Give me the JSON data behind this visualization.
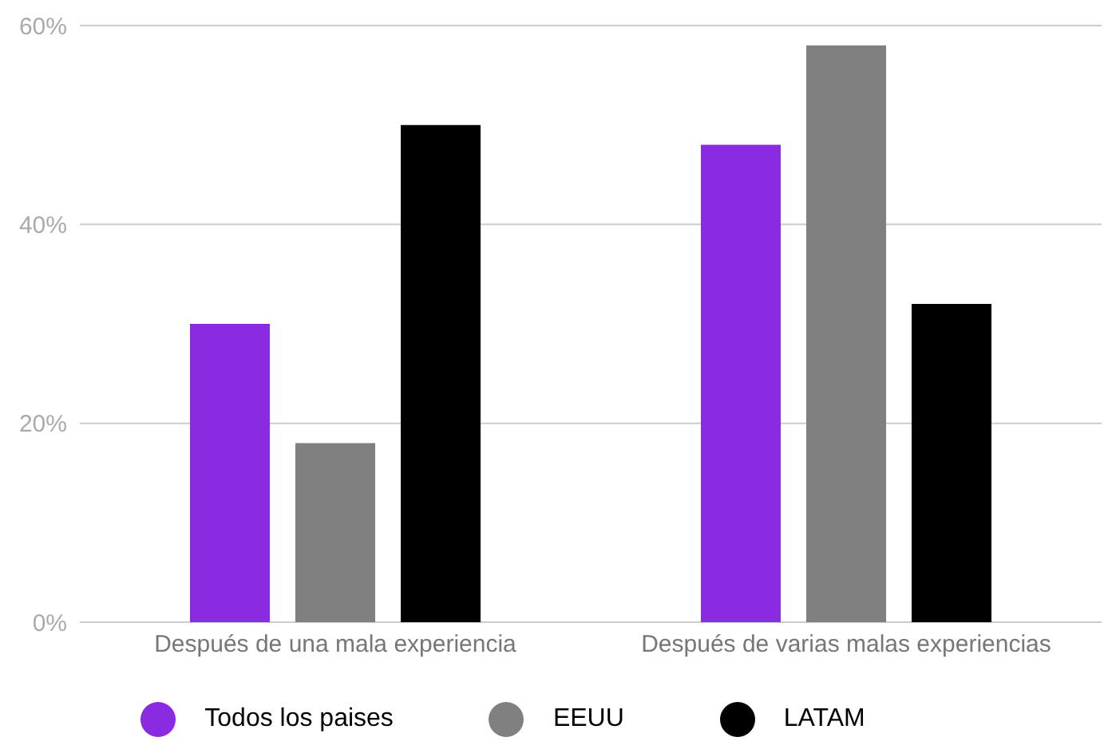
{
  "chart_data": {
    "type": "bar",
    "categories": [
      "Después de una mala experiencia",
      "Después de varias malas experiencias"
    ],
    "series": [
      {
        "name": "Todos los paises",
        "color": "#8a2be2",
        "values": [
          30,
          48
        ]
      },
      {
        "name": "EEUU",
        "color": "#808080",
        "values": [
          18,
          58
        ]
      },
      {
        "name": "LATAM",
        "color": "#000000",
        "values": [
          50,
          32
        ]
      }
    ],
    "ylim": [
      0,
      60
    ],
    "yticks": [
      {
        "value": 0,
        "label": "0%"
      },
      {
        "value": 20,
        "label": "20%"
      },
      {
        "value": 40,
        "label": "40%"
      },
      {
        "value": 60,
        "label": "60%"
      }
    ],
    "grid": "y",
    "legend": "bottom"
  }
}
